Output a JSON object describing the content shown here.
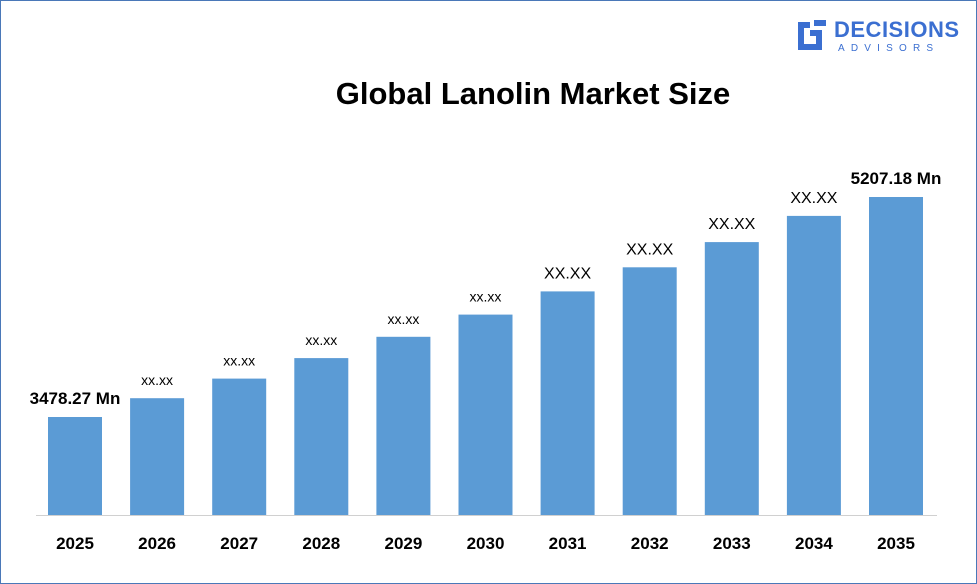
{
  "logo": {
    "name_main": "DECISIONS",
    "name_sub": "ADVISORS",
    "color": "#3b6fd1"
  },
  "chart_data": {
    "type": "bar",
    "title": "Global Lanolin Market Size",
    "categories": [
      "2025",
      "2026",
      "2027",
      "2028",
      "2029",
      "2030",
      "2031",
      "2032",
      "2033",
      "2034",
      "2035"
    ],
    "values": [
      3478.27,
      3626.1,
      3780.2,
      3940.9,
      4108.4,
      4283.0,
      4465.0,
      4654.8,
      4852.6,
      5058.9,
      5207.18
    ],
    "data_labels": [
      "3478.27 Mn",
      "xx.xx",
      "xx.xx",
      "xx.xx",
      "xx.xx",
      "xx.xx",
      "XX.XX",
      "XX.XX",
      "XX.XX",
      "XX.XX",
      "5207.18 Mn"
    ],
    "bar_color": "#5b9bd5",
    "xlabel": "",
    "ylabel": "",
    "grid": false,
    "legend": "none"
  }
}
